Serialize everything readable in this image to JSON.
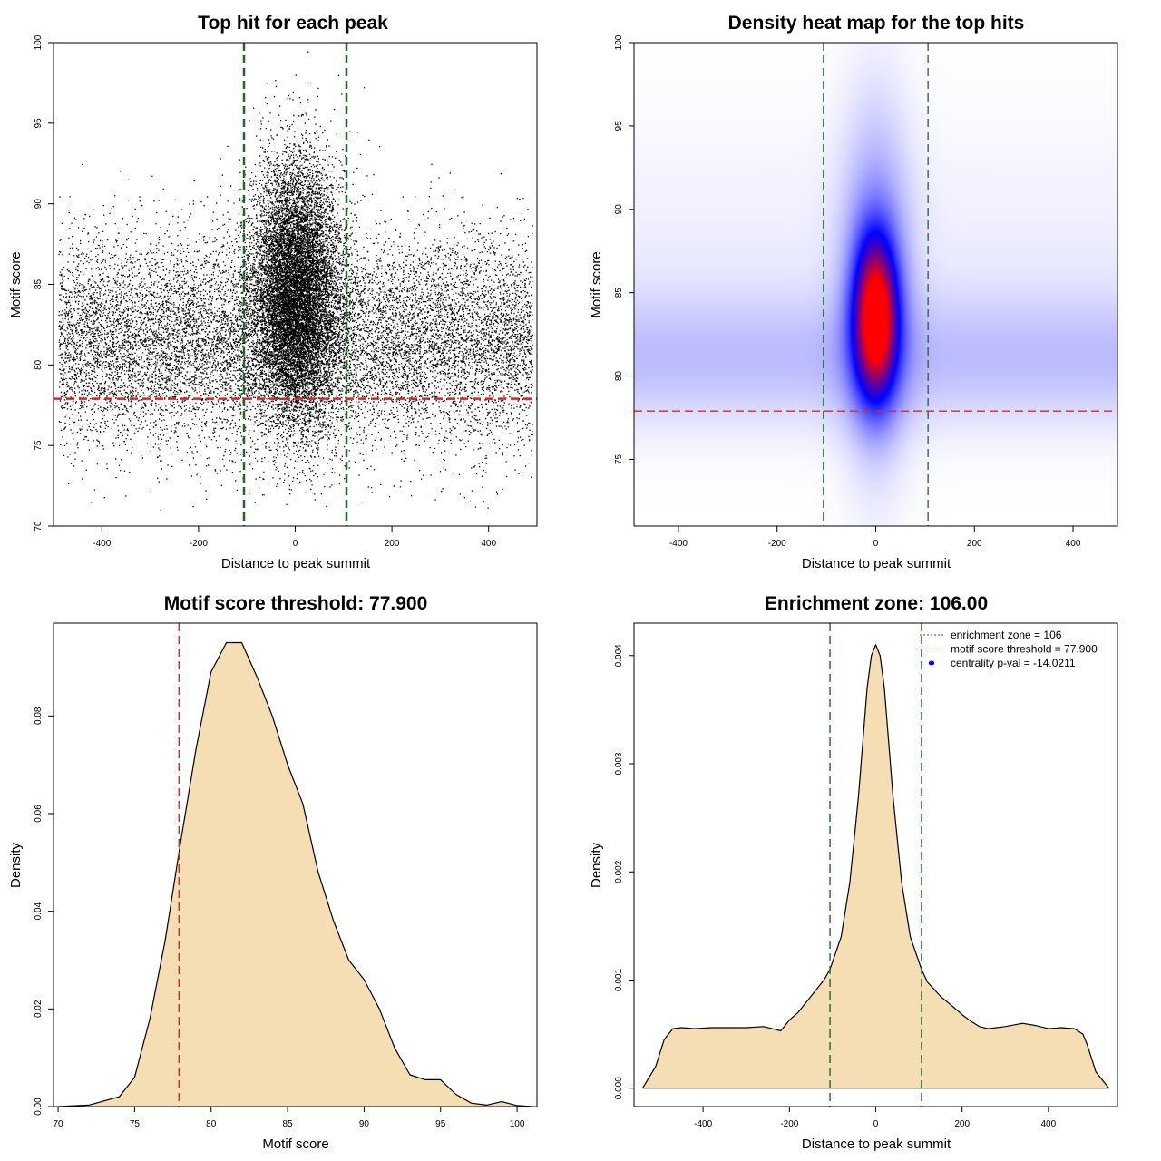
{
  "chart_data": [
    {
      "id": "p1",
      "type": "scatter",
      "title": "Top hit for each peak",
      "xlabel": "Distance to peak summit",
      "ylabel": "Motif score",
      "xlim": [
        -500,
        500
      ],
      "ylim": [
        70,
        100
      ],
      "xticks": [
        -400,
        -200,
        0,
        200,
        400
      ],
      "yticks": [
        70,
        75,
        80,
        85,
        90,
        95,
        100
      ],
      "point_color": "#000000",
      "distribution": {
        "background_uniform_x": [
          -490,
          490
        ],
        "background_score_mean": 81.5,
        "background_score_sd": 3.2,
        "central_x_sd": 45,
        "central_score_mean": 84.5,
        "central_score_sd": 4.0,
        "background_points": 13000,
        "central_points": 12000
      },
      "hlines": [
        {
          "y": 77.9,
          "color": "#d62728",
          "style": "dashed"
        }
      ],
      "vlines": [
        {
          "x": -106,
          "color": "#1a6b1a",
          "style": "dashed"
        },
        {
          "x": 106,
          "color": "#1a6b1a",
          "style": "dashed"
        }
      ]
    },
    {
      "id": "p2",
      "type": "heatmap",
      "title": "Density heat map for the top hits",
      "xlabel": "Distance to peak summit",
      "ylabel": "Motif score",
      "xlim": [
        -490,
        490
      ],
      "ylim": [
        71,
        100
      ],
      "xticks": [
        -400,
        -200,
        0,
        200,
        400
      ],
      "yticks": [
        75,
        80,
        85,
        90,
        95,
        100
      ],
      "colors": [
        "#ffffff",
        "#0000ff",
        "#ff0000"
      ],
      "density_peak": {
        "x": 0,
        "y": 83.5,
        "x_sd": 30,
        "y_sd": 3.2
      },
      "background_band": {
        "y": 81,
        "y_sd": 2.8
      },
      "hlines": [
        {
          "y": 77.9,
          "color": "#d62728",
          "style": "dashed"
        }
      ],
      "vlines": [
        {
          "x": -106,
          "color": "#1a6b1a",
          "style": "dashed"
        },
        {
          "x": 106,
          "color": "#1a6b1a",
          "style": "dashed"
        }
      ]
    },
    {
      "id": "p3",
      "type": "area",
      "title": "Motif score threshold: 77.900",
      "xlabel": "Motif score",
      "ylabel": "Density",
      "xlim": [
        69.7,
        101.3
      ],
      "ylim": [
        0,
        0.099
      ],
      "xticks": [
        70,
        75,
        80,
        85,
        90,
        95,
        100
      ],
      "yticks": [
        0,
        0.02,
        0.04,
        0.06,
        0.08
      ],
      "ytick_labels": [
        "0.00",
        "0.02",
        "0.04",
        "0.06",
        "0.08"
      ],
      "fill": "#f5deb3",
      "x": [
        70,
        72,
        74,
        75,
        76,
        77,
        78,
        79,
        80,
        81,
        82,
        83,
        84,
        85,
        86,
        87,
        88,
        89,
        90,
        91,
        92,
        93,
        94,
        95,
        96,
        97,
        98,
        99,
        100,
        101
      ],
      "y": [
        0,
        0.0003,
        0.002,
        0.006,
        0.018,
        0.034,
        0.054,
        0.073,
        0.089,
        0.095,
        0.095,
        0.088,
        0.08,
        0.07,
        0.062,
        0.048,
        0.038,
        0.03,
        0.026,
        0.02,
        0.012,
        0.0065,
        0.0055,
        0.0055,
        0.0025,
        0.0007,
        0.0003,
        0.001,
        0.0002,
        0
      ],
      "vlines": [
        {
          "x": 77.9,
          "color": "#d62728",
          "style": "dashed"
        }
      ]
    },
    {
      "id": "p4",
      "type": "area",
      "title": "Enrichment zone: 106.00",
      "xlabel": "Distance to peak summit",
      "ylabel": "Density",
      "xlim": [
        -560,
        560
      ],
      "ylim": [
        -0.00017,
        0.0043
      ],
      "xticks": [
        -400,
        -200,
        0,
        200,
        400
      ],
      "yticks": [
        0,
        0.001,
        0.002,
        0.003,
        0.004
      ],
      "ytick_labels": [
        "0.000",
        "0.001",
        "0.002",
        "0.003",
        "0.004"
      ],
      "fill": "#f5deb3",
      "x": [
        -540,
        -510,
        -490,
        -470,
        -450,
        -420,
        -380,
        -340,
        -300,
        -260,
        -240,
        -220,
        -200,
        -180,
        -150,
        -120,
        -106,
        -80,
        -60,
        -40,
        -20,
        -10,
        0,
        10,
        20,
        40,
        60,
        80,
        106,
        120,
        150,
        180,
        200,
        220,
        240,
        260,
        300,
        340,
        370,
        400,
        430,
        460,
        480,
        490,
        510,
        540
      ],
      "y": [
        0,
        0.0002,
        0.00045,
        0.00055,
        0.00056,
        0.00055,
        0.00056,
        0.00056,
        0.00056,
        0.00057,
        0.00055,
        0.00053,
        0.00063,
        0.0007,
        0.00085,
        0.001,
        0.0011,
        0.0014,
        0.0019,
        0.0027,
        0.0037,
        0.004,
        0.0041,
        0.004,
        0.0037,
        0.0027,
        0.0019,
        0.0014,
        0.0011,
        0.00098,
        0.00085,
        0.00075,
        0.00068,
        0.00062,
        0.00057,
        0.00055,
        0.00057,
        0.0006,
        0.00058,
        0.00055,
        0.00056,
        0.00055,
        0.0005,
        0.0004,
        0.00015,
        0
      ],
      "vlines": [
        {
          "x": -106,
          "color": "#1a6b1a",
          "style": "dashed"
        },
        {
          "x": 106,
          "color": "#1a6b1a",
          "style": "dashed"
        }
      ],
      "legend": [
        {
          "label": "enrichment zone = 106",
          "kind": "line",
          "color": "#1a6b1a"
        },
        {
          "label": "motif score threshold = 77.900",
          "kind": "line",
          "color": "#d62728"
        },
        {
          "label": "centrality p-val = -14.0211",
          "kind": "point",
          "color": "#0000ff"
        }
      ],
      "legend_position": "top-right"
    }
  ]
}
